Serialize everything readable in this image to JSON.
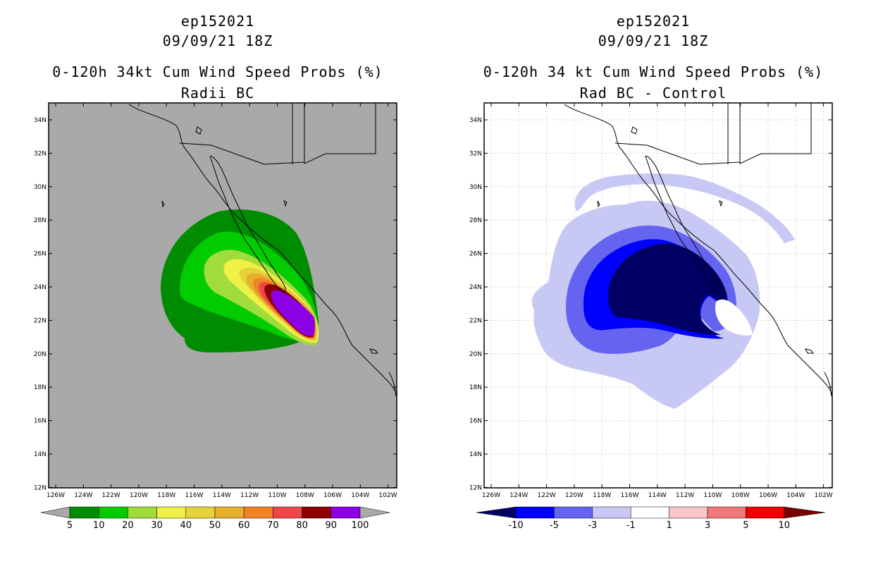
{
  "left_panel": {
    "title_line1": "ep152021",
    "title_line2": "09/09/21 18Z",
    "title_line3": "0-120h 34kt Cum Wind Speed Probs (%)",
    "title_line4": "Radii BC",
    "background_color": "#a9a9a9",
    "colorbar": {
      "labels": [
        "5",
        "10",
        "20",
        "30",
        "40",
        "50",
        "60",
        "70",
        "80",
        "90",
        "100"
      ],
      "colors": [
        "#008c00",
        "#00cc00",
        "#a0dc3c",
        "#f0f046",
        "#e6d23c",
        "#e6af2d",
        "#f08228",
        "#f04646",
        "#8c0000",
        "#8c00e6"
      ],
      "end_color": "#a9a9a9"
    }
  },
  "right_panel": {
    "title_line1": "ep152021",
    "title_line2": "09/09/21 18Z",
    "title_line3": "0-120h 34 kt Cum Wind Speed Probs (%)",
    "title_line4": "Rad BC - Control",
    "colorbar": {
      "labels": [
        "-10",
        "-5",
        "-3",
        "-1",
        "1",
        "3",
        "5",
        "10"
      ],
      "colors": [
        "#000064",
        "#0000ff",
        "#6464f0",
        "#c8c8f5",
        "#ffffff",
        "#fac8c8",
        "#f07878",
        "#f00000",
        "#780000"
      ]
    }
  },
  "axes": {
    "lat_labels": [
      "34N",
      "32N",
      "30N",
      "28N",
      "26N",
      "24N",
      "22N",
      "20N",
      "18N",
      "16N",
      "14N",
      "12N"
    ],
    "lon_labels": [
      "126W",
      "124W",
      "122W",
      "120W",
      "118W",
      "116W",
      "114W",
      "112W",
      "110W",
      "108W",
      "106W",
      "104W",
      "102W"
    ]
  }
}
